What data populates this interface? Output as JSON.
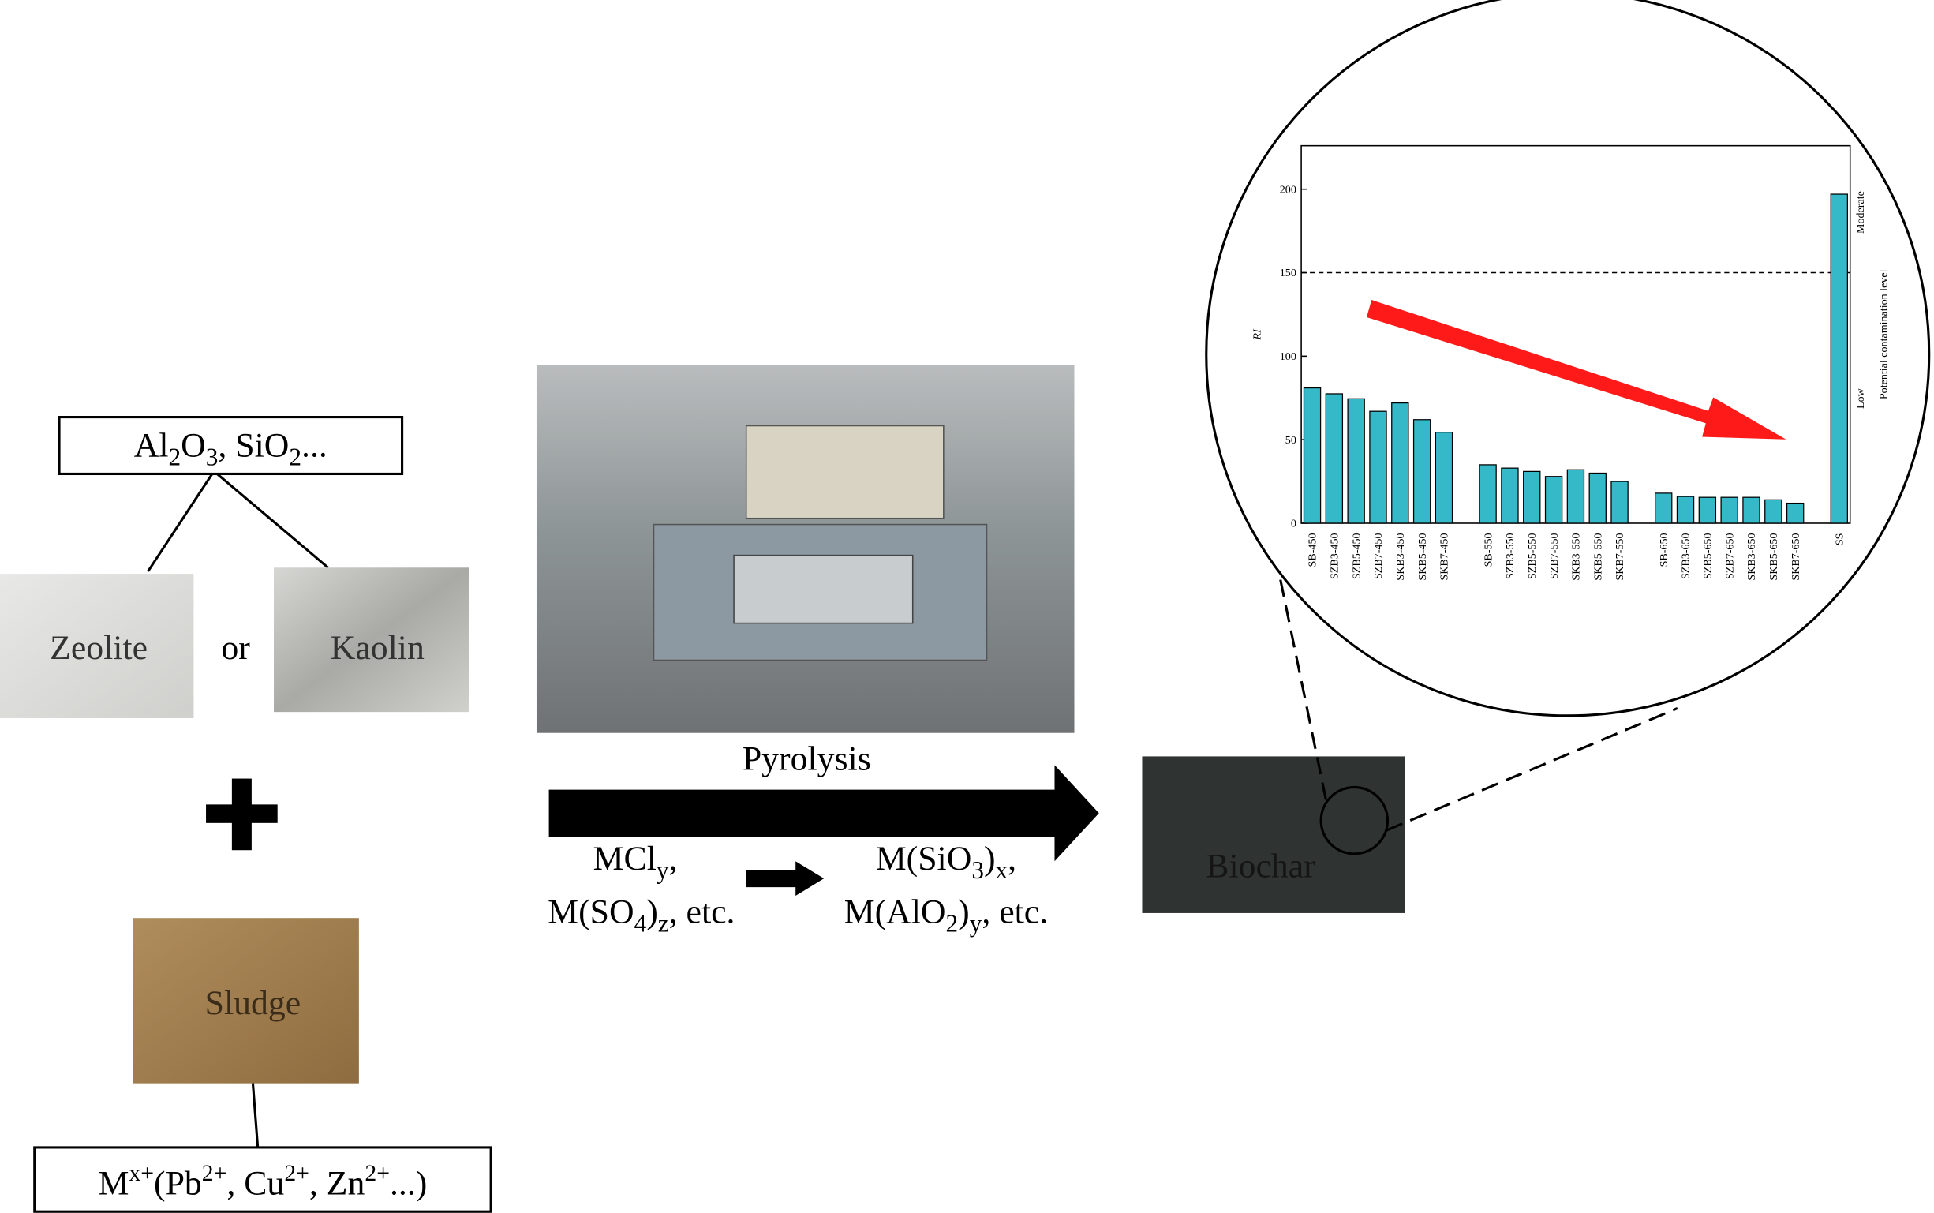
{
  "top_box": {
    "parts": [
      "Al",
      "2",
      "O",
      "3",
      ", SiO",
      "2",
      "..."
    ]
  },
  "materials": {
    "zeolite": "Zeolite",
    "or": "or",
    "kaolin": "Kaolin",
    "sludge": "Sludge",
    "biochar": "Biochar"
  },
  "bottom_box": {
    "parts": [
      "M",
      "x+",
      "(Pb",
      "2+",
      ", Cu",
      "2+",
      ", Zn",
      "2+",
      "...)"
    ]
  },
  "process": {
    "label": "Pyrolysis",
    "reactants": [
      [
        "MCl",
        "y",
        ","
      ],
      [
        "M(SO",
        "4",
        ")",
        "z",
        ", etc."
      ]
    ],
    "products": [
      [
        "M(SiO",
        "3",
        ")",
        "x",
        ","
      ],
      [
        "M(AlO",
        "2",
        ")",
        "y",
        ", etc."
      ]
    ]
  },
  "inset_chart": {
    "type": "bar",
    "y_label": "RI",
    "categories": [
      "SB-450",
      "SZB3-450",
      "SZB5-450",
      "SZB7-450",
      "SKB3-450",
      "SKB5-450",
      "SKB7-450",
      null,
      "SB-550",
      "SZB3-550",
      "SZB5-550",
      "SZB7-550",
      "SKB3-550",
      "SKB5-550",
      "SKB7-550",
      null,
      "SB-650",
      "SZB3-650",
      "SZB5-650",
      "SZB7-650",
      "SKB3-650",
      "SKB5-650",
      "SKB7-650",
      null,
      "SS"
    ],
    "values": [
      81,
      77.5,
      74.5,
      67,
      72,
      62,
      54.5,
      null,
      35,
      33,
      31,
      28,
      32,
      30,
      25,
      null,
      18,
      16,
      15.5,
      15.5,
      15.5,
      14,
      12,
      null,
      197
    ],
    "color": "#35b8c8",
    "ylim": [
      0,
      226
    ],
    "yticks": [
      0,
      50,
      100,
      150,
      200
    ],
    "threshold": 150,
    "level_labels": {
      "upper": "Moderate",
      "lower": "Low",
      "title": "Potential contamination level"
    }
  }
}
